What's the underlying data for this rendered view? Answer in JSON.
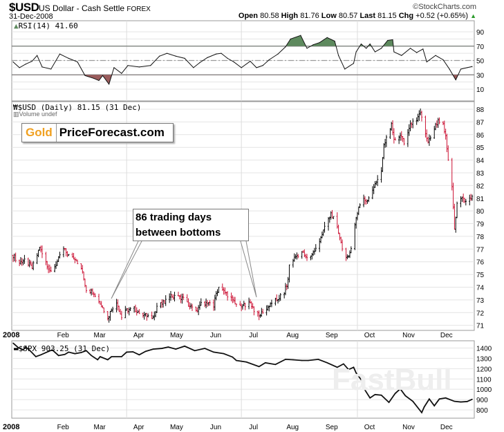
{
  "header": {
    "symbol": "$USD",
    "name": "US Dollar - Cash Settle",
    "exchange": "FOREX",
    "date": "31-Dec-2008",
    "brand": "©StockCharts.com",
    "open_label": "Open",
    "open": "80.58",
    "high_label": "High",
    "high": "81.76",
    "low_label": "Low",
    "low": "80.57",
    "last_label": "Last",
    "last": "81.15",
    "chg_label": "Chg",
    "chg": "+0.52 (+0.65%)"
  },
  "logo": {
    "gold": "Gold",
    "rest": "PriceForecast.com"
  },
  "annotation": "86 trading days between bottoms",
  "watermark": "FastBull",
  "colors": {
    "up": "#000000",
    "down": "#cc1133",
    "overbought_fill": "#5e8a5e",
    "oversold_fill": "#9a5c5c",
    "grid": "#e4e4e4"
  },
  "chart_data": [
    {
      "type": "line",
      "panel": "rsi",
      "label": "RSI(14) 41.60",
      "ylim": [
        0,
        100
      ],
      "yticks": [
        10,
        30,
        50,
        70,
        90
      ],
      "reference_lines": [
        30,
        50,
        70
      ],
      "points": [
        [
          "2008-01-02",
          48
        ],
        [
          "2008-01-07",
          40
        ],
        [
          "2008-01-12",
          45
        ],
        [
          "2008-01-17",
          49
        ],
        [
          "2008-01-21",
          57
        ],
        [
          "2008-01-25",
          41
        ],
        [
          "2008-02-01",
          38
        ],
        [
          "2008-02-08",
          59
        ],
        [
          "2008-02-15",
          53
        ],
        [
          "2008-02-22",
          48
        ],
        [
          "2008-02-28",
          29
        ],
        [
          "2008-03-06",
          25
        ],
        [
          "2008-03-10",
          22
        ],
        [
          "2008-03-13",
          29
        ],
        [
          "2008-03-18",
          17
        ],
        [
          "2008-03-22",
          40
        ],
        [
          "2008-03-28",
          32
        ],
        [
          "2008-04-02",
          43
        ],
        [
          "2008-04-11",
          41
        ],
        [
          "2008-04-20",
          43
        ],
        [
          "2008-04-27",
          56
        ],
        [
          "2008-05-03",
          60
        ],
        [
          "2008-05-10",
          56
        ],
        [
          "2008-05-17",
          53
        ],
        [
          "2008-05-24",
          40
        ],
        [
          "2008-05-29",
          47
        ],
        [
          "2008-06-04",
          54
        ],
        [
          "2008-06-11",
          59
        ],
        [
          "2008-06-15",
          60
        ],
        [
          "2008-06-20",
          53
        ],
        [
          "2008-06-25",
          48
        ],
        [
          "2008-07-01",
          40
        ],
        [
          "2008-07-08",
          49
        ],
        [
          "2008-07-13",
          40
        ],
        [
          "2008-07-18",
          43
        ],
        [
          "2008-07-23",
          51
        ],
        [
          "2008-07-30",
          59
        ],
        [
          "2008-08-05",
          69
        ],
        [
          "2008-08-09",
          80
        ],
        [
          "2008-08-17",
          85
        ],
        [
          "2008-08-22",
          67
        ],
        [
          "2008-08-27",
          72
        ],
        [
          "2008-09-01",
          75
        ],
        [
          "2008-09-07",
          82
        ],
        [
          "2008-09-13",
          77
        ],
        [
          "2008-09-16",
          57
        ],
        [
          "2008-09-21",
          38
        ],
        [
          "2008-09-28",
          46
        ],
        [
          "2008-09-30",
          62
        ],
        [
          "2008-10-04",
          73
        ],
        [
          "2008-10-08",
          67
        ],
        [
          "2008-10-11",
          73
        ],
        [
          "2008-10-15",
          62
        ],
        [
          "2008-10-20",
          67
        ],
        [
          "2008-10-25",
          78
        ],
        [
          "2008-10-29",
          79
        ],
        [
          "2008-10-30",
          62
        ],
        [
          "2008-11-05",
          57
        ],
        [
          "2008-11-12",
          67
        ],
        [
          "2008-11-17",
          61
        ],
        [
          "2008-11-22",
          66
        ],
        [
          "2008-11-25",
          48
        ],
        [
          "2008-12-02",
          57
        ],
        [
          "2008-12-08",
          51
        ],
        [
          "2008-12-13",
          38
        ],
        [
          "2008-12-18",
          23
        ],
        [
          "2008-12-22",
          38
        ],
        [
          "2008-12-27",
          40
        ],
        [
          "2008-12-31",
          41.6
        ]
      ]
    },
    {
      "type": "ohlc",
      "panel": "price",
      "label": "$USD (Daily) 81.15 (31 Dec)",
      "sublabel": "Volume undef",
      "ylim": [
        70.6,
        88.6
      ],
      "yticks": [
        71,
        72,
        73,
        74,
        75,
        76,
        77,
        78,
        79,
        80,
        81,
        82,
        83,
        84,
        85,
        86,
        87,
        88
      ],
      "closes": [
        [
          "2008-01-02",
          76.5
        ],
        [
          "2008-01-07",
          75.9
        ],
        [
          "2008-01-11",
          76.2
        ],
        [
          "2008-01-17",
          75.5
        ],
        [
          "2008-01-23",
          77.1
        ],
        [
          "2008-01-28",
          76.0
        ],
        [
          "2008-02-01",
          75.1
        ],
        [
          "2008-02-06",
          76.0
        ],
        [
          "2008-02-11",
          77.0
        ],
        [
          "2008-02-15",
          76.5
        ],
        [
          "2008-02-20",
          76.3
        ],
        [
          "2008-02-25",
          75.5
        ],
        [
          "2008-02-29",
          73.8
        ],
        [
          "2008-03-06",
          73.6
        ],
        [
          "2008-03-10",
          72.9
        ],
        [
          "2008-03-14",
          72.2
        ],
        [
          "2008-03-17",
          71.5
        ],
        [
          "2008-03-20",
          72.3
        ],
        [
          "2008-03-24",
          72.9
        ],
        [
          "2008-03-28",
          71.6
        ],
        [
          "2008-04-01",
          72.2
        ],
        [
          "2008-04-07",
          72.3
        ],
        [
          "2008-04-11",
          72.0
        ],
        [
          "2008-04-16",
          71.8
        ],
        [
          "2008-04-22",
          71.6
        ],
        [
          "2008-04-25",
          72.5
        ],
        [
          "2008-05-01",
          72.8
        ],
        [
          "2008-05-05",
          73.4
        ],
        [
          "2008-05-09",
          73.2
        ],
        [
          "2008-05-15",
          73.2
        ],
        [
          "2008-05-20",
          72.6
        ],
        [
          "2008-05-27",
          72.0
        ],
        [
          "2008-05-30",
          72.8
        ],
        [
          "2008-06-04",
          72.7
        ],
        [
          "2008-06-09",
          72.5
        ],
        [
          "2008-06-11",
          73.5
        ],
        [
          "2008-06-13",
          74.0
        ],
        [
          "2008-06-19",
          73.5
        ],
        [
          "2008-06-24",
          73.0
        ],
        [
          "2008-06-30",
          72.4
        ],
        [
          "2008-07-03",
          72.6
        ],
        [
          "2008-07-08",
          72.8
        ],
        [
          "2008-07-11",
          72.2
        ],
        [
          "2008-07-15",
          71.7
        ],
        [
          "2008-07-18",
          72.1
        ],
        [
          "2008-07-24",
          72.6
        ],
        [
          "2008-07-29",
          73.0
        ],
        [
          "2008-08-04",
          73.6
        ],
        [
          "2008-08-07",
          74.5
        ],
        [
          "2008-08-08",
          75.8
        ],
        [
          "2008-08-13",
          76.4
        ],
        [
          "2008-08-18",
          76.8
        ],
        [
          "2008-08-21",
          76.3
        ],
        [
          "2008-08-26",
          76.6
        ],
        [
          "2008-08-29",
          77.0
        ],
        [
          "2008-09-03",
          78.2
        ],
        [
          "2008-09-08",
          79.3
        ],
        [
          "2008-09-10",
          79.8
        ],
        [
          "2008-09-15",
          78.8
        ],
        [
          "2008-09-18",
          77.5
        ],
        [
          "2008-09-22",
          76.2
        ],
        [
          "2008-09-26",
          77.0
        ],
        [
          "2008-09-29",
          79.0
        ],
        [
          "2008-10-02",
          80.3
        ],
        [
          "2008-10-06",
          81.0
        ],
        [
          "2008-10-08",
          80.8
        ],
        [
          "2008-10-13",
          81.5
        ],
        [
          "2008-10-15",
          82.2
        ],
        [
          "2008-10-20",
          83.0
        ],
        [
          "2008-10-22",
          85.2
        ],
        [
          "2008-10-27",
          86.3
        ],
        [
          "2008-10-28",
          87.0
        ],
        [
          "2008-10-30",
          85.5
        ],
        [
          "2008-11-04",
          86.0
        ],
        [
          "2008-11-07",
          85.3
        ],
        [
          "2008-11-10",
          86.2
        ],
        [
          "2008-11-14",
          87.2
        ],
        [
          "2008-11-17",
          87.0
        ],
        [
          "2008-11-20",
          87.8
        ],
        [
          "2008-11-24",
          86.0
        ],
        [
          "2008-11-26",
          85.3
        ],
        [
          "2008-12-01",
          86.5
        ],
        [
          "2008-12-04",
          87.0
        ],
        [
          "2008-12-08",
          86.8
        ],
        [
          "2008-12-10",
          85.8
        ],
        [
          "2008-12-12",
          84.0
        ],
        [
          "2008-12-15",
          82.0
        ],
        [
          "2008-12-17",
          78.5
        ],
        [
          "2008-12-19",
          80.5
        ],
        [
          "2008-12-22",
          81.0
        ],
        [
          "2008-12-26",
          80.8
        ],
        [
          "2008-12-31",
          81.15
        ]
      ]
    },
    {
      "type": "line",
      "panel": "spx",
      "label": "$SPX 903.25 (31 Dec)",
      "ylim": [
        720,
        1470
      ],
      "yticks": [
        800,
        900,
        1000,
        1100,
        1200,
        1300,
        1400
      ],
      "points": [
        [
          "2008-01-02",
          1447
        ],
        [
          "2008-01-06",
          1404
        ],
        [
          "2008-01-10",
          1382
        ],
        [
          "2008-01-12",
          1411
        ],
        [
          "2008-01-16",
          1367
        ],
        [
          "2008-01-20",
          1316
        ],
        [
          "2008-01-24",
          1334
        ],
        [
          "2008-01-28",
          1356
        ],
        [
          "2008-02-02",
          1382
        ],
        [
          "2008-02-07",
          1327
        ],
        [
          "2008-02-12",
          1338
        ],
        [
          "2008-02-15",
          1360
        ],
        [
          "2008-02-20",
          1345
        ],
        [
          "2008-02-25",
          1356
        ],
        [
          "2008-02-29",
          1374
        ],
        [
          "2008-03-04",
          1327
        ],
        [
          "2008-03-09",
          1286
        ],
        [
          "2008-03-11",
          1316
        ],
        [
          "2008-03-17",
          1286
        ],
        [
          "2008-03-20",
          1316
        ],
        [
          "2008-03-28",
          1316
        ],
        [
          "2008-04-01",
          1360
        ],
        [
          "2008-04-06",
          1363
        ],
        [
          "2008-04-11",
          1334
        ],
        [
          "2008-04-16",
          1367
        ],
        [
          "2008-04-22",
          1389
        ],
        [
          "2008-04-29",
          1396
        ],
        [
          "2008-05-04",
          1409
        ],
        [
          "2008-05-10",
          1389
        ],
        [
          "2008-05-17",
          1418
        ],
        [
          "2008-05-25",
          1374
        ],
        [
          "2008-06-02",
          1396
        ],
        [
          "2008-06-09",
          1360
        ],
        [
          "2008-06-17",
          1345
        ],
        [
          "2008-06-24",
          1312
        ],
        [
          "2008-06-27",
          1279
        ],
        [
          "2008-07-05",
          1264
        ],
        [
          "2008-07-15",
          1220
        ],
        [
          "2008-07-20",
          1257
        ],
        [
          "2008-07-28",
          1240
        ],
        [
          "2008-08-05",
          1290
        ],
        [
          "2008-08-11",
          1286
        ],
        [
          "2008-08-18",
          1279
        ],
        [
          "2008-08-23",
          1279
        ],
        [
          "2008-08-31",
          1290
        ],
        [
          "2008-09-07",
          1257
        ],
        [
          "2008-09-15",
          1213
        ],
        [
          "2008-09-20",
          1246
        ],
        [
          "2008-09-24",
          1191
        ],
        [
          "2008-09-28",
          1213
        ],
        [
          "2008-09-30",
          1158
        ],
        [
          "2008-10-04",
          1092
        ],
        [
          "2008-10-07",
          993
        ],
        [
          "2008-10-11",
          916
        ],
        [
          "2008-10-15",
          949
        ],
        [
          "2008-10-20",
          943
        ],
        [
          "2008-10-26",
          873
        ],
        [
          "2008-10-31",
          960
        ],
        [
          "2008-11-04",
          1004
        ],
        [
          "2008-11-08",
          938
        ],
        [
          "2008-11-14",
          883
        ],
        [
          "2008-11-21",
          774
        ],
        [
          "2008-11-23",
          829
        ],
        [
          "2008-11-27",
          906
        ],
        [
          "2008-12-01",
          840
        ],
        [
          "2008-12-05",
          906
        ],
        [
          "2008-12-10",
          916
        ],
        [
          "2008-12-17",
          883
        ],
        [
          "2008-12-22",
          877
        ],
        [
          "2008-12-27",
          881
        ],
        [
          "2008-12-31",
          903.25
        ]
      ]
    }
  ],
  "x_axis": {
    "year_label": "2008",
    "months": [
      [
        "Feb",
        "2008-02-15"
      ],
      [
        "Mar",
        "2008-03-15"
      ],
      [
        "Apr",
        "2008-04-15"
      ],
      [
        "May",
        "2008-05-15"
      ],
      [
        "Jun",
        "2008-06-15"
      ],
      [
        "Jul",
        "2008-07-15"
      ],
      [
        "Aug",
        "2008-08-15"
      ],
      [
        "Sep",
        "2008-09-15"
      ],
      [
        "Oct",
        "2008-10-15"
      ],
      [
        "Nov",
        "2008-11-15"
      ],
      [
        "Dec",
        "2008-12-15"
      ]
    ]
  }
}
